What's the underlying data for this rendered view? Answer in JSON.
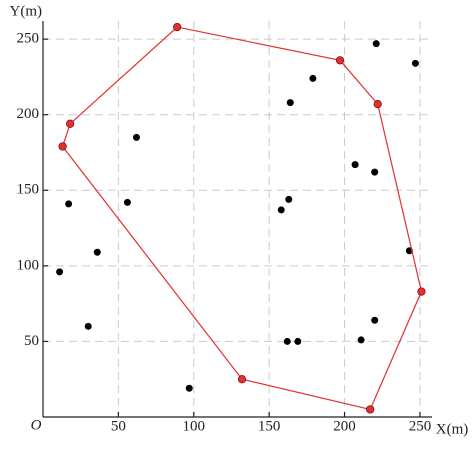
{
  "chart_data": {
    "type": "scatter",
    "x_label": "X(m)",
    "y_label": "Y(m)",
    "origin_label": "O",
    "xlim": [
      0,
      258
    ],
    "ylim": [
      0,
      262
    ],
    "xticks": [
      50,
      100,
      150,
      200,
      250
    ],
    "yticks": [
      50,
      100,
      150,
      200,
      250
    ],
    "grid": true,
    "series": [
      {
        "color": "#000000",
        "x": [
          221,
          247,
          179,
          164,
          62,
          207,
          220,
          17,
          56,
          163,
          158,
          36,
          11,
          243,
          30,
          220,
          211,
          162,
          169,
          97
        ],
        "values": [
          247,
          234,
          224,
          208,
          185,
          167,
          162,
          141,
          142,
          144,
          137,
          109,
          96,
          110,
          60,
          64,
          51,
          50,
          50,
          19
        ]
      },
      {
        "color": "#e03030",
        "polygon": true,
        "x": [
          89,
          197,
          222,
          251,
          217,
          132,
          13,
          18
        ],
        "values": [
          258,
          236,
          207,
          83,
          5,
          25,
          179,
          194
        ]
      }
    ]
  }
}
